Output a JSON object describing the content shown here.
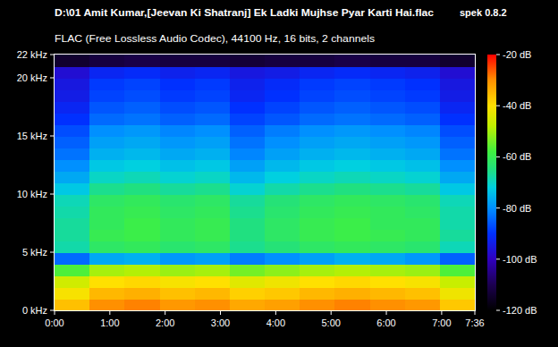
{
  "chart_data": {
    "type": "heatmap",
    "title": "D:\\01 Amit Kumar,[Jeevan Ki Shatranj] Ek Ladki Mujhse Pyar Karti Hai.flac",
    "subtitle": "FLAC (Free Lossless Audio Codec), 44100 Hz, 16 bits, 2 channels",
    "annotations": [
      "spek 0.8.2"
    ],
    "xlim": [
      0,
      456
    ],
    "ylim": [
      0,
      22
    ],
    "xticks": [
      {
        "value": 0,
        "label": "0:00"
      },
      {
        "value": 60,
        "label": "1:00"
      },
      {
        "value": 120,
        "label": "2:00"
      },
      {
        "value": 180,
        "label": "3:00"
      },
      {
        "value": 240,
        "label": "4:00"
      },
      {
        "value": 300,
        "label": "5:00"
      },
      {
        "value": 360,
        "label": "6:00"
      },
      {
        "value": 420,
        "label": "7:00"
      },
      {
        "value": 456,
        "label": "7:36"
      }
    ],
    "yticks": [
      {
        "value": 0,
        "label": "0 kHz"
      },
      {
        "value": 5,
        "label": "5 kHz"
      },
      {
        "value": 10,
        "label": "10 kHz"
      },
      {
        "value": 15,
        "label": "15 kHz"
      },
      {
        "value": 20,
        "label": "20 kHz"
      },
      {
        "value": 22,
        "label": "22 kHz"
      }
    ],
    "x_bins": [
      0,
      38,
      76,
      114,
      152,
      190,
      228,
      266,
      304,
      342,
      380,
      418,
      456
    ],
    "y_bins": [
      0,
      1,
      2,
      3,
      4,
      5,
      6,
      7,
      8,
      9,
      10,
      11,
      12,
      13,
      14,
      15,
      16,
      17,
      18,
      19,
      20,
      21,
      22
    ],
    "values": [
      [
        -36,
        -30,
        -29,
        -31,
        -30,
        -33,
        -32,
        -30,
        -29,
        -30,
        -31,
        -37
      ],
      [
        -41,
        -35,
        -34,
        -36,
        -35,
        -38,
        -37,
        -35,
        -34,
        -35,
        -36,
        -42
      ],
      [
        -46,
        -40,
        -39,
        -41,
        -40,
        -44,
        -42,
        -40,
        -39,
        -40,
        -41,
        -47
      ],
      [
        -57,
        -50,
        -49,
        -51,
        -50,
        -54,
        -52,
        -50,
        -49,
        -50,
        -51,
        -57
      ],
      [
        -84,
        -77,
        -76,
        -79,
        -78,
        -82,
        -80,
        -78,
        -76,
        -77,
        -79,
        -85
      ],
      [
        -68,
        -62,
        -61,
        -63,
        -62,
        -66,
        -64,
        -62,
        -61,
        -62,
        -63,
        -69
      ],
      [
        -67,
        -60,
        -59,
        -61,
        -60,
        -65,
        -62,
        -60,
        -59,
        -60,
        -61,
        -67
      ],
      [
        -67,
        -61,
        -59,
        -61,
        -60,
        -65,
        -62,
        -60,
        -59,
        -61,
        -61,
        -68
      ],
      [
        -68,
        -61,
        -60,
        -62,
        -61,
        -66,
        -63,
        -61,
        -60,
        -61,
        -62,
        -68
      ],
      [
        -69,
        -62,
        -61,
        -63,
        -62,
        -67,
        -64,
        -62,
        -61,
        -62,
        -63,
        -69
      ],
      [
        -73,
        -66,
        -65,
        -67,
        -66,
        -71,
        -68,
        -66,
        -65,
        -66,
        -67,
        -73
      ],
      [
        -77,
        -70,
        -69,
        -71,
        -70,
        -75,
        -72,
        -70,
        -69,
        -70,
        -71,
        -77
      ],
      [
        -80,
        -73,
        -72,
        -74,
        -73,
        -78,
        -75,
        -73,
        -72,
        -73,
        -74,
        -80
      ],
      [
        -83,
        -76,
        -75,
        -77,
        -76,
        -81,
        -78,
        -76,
        -75,
        -76,
        -77,
        -83
      ],
      [
        -85,
        -78,
        -77,
        -79,
        -78,
        -83,
        -80,
        -78,
        -77,
        -78,
        -79,
        -85
      ],
      [
        -87,
        -80,
        -79,
        -81,
        -80,
        -85,
        -82,
        -80,
        -79,
        -80,
        -81,
        -87
      ],
      [
        -90,
        -84,
        -83,
        -85,
        -84,
        -88,
        -86,
        -84,
        -83,
        -84,
        -85,
        -90
      ],
      [
        -92,
        -86,
        -85,
        -87,
        -86,
        -90,
        -88,
        -86,
        -85,
        -86,
        -87,
        -92
      ],
      [
        -94,
        -88,
        -87,
        -89,
        -88,
        -92,
        -90,
        -88,
        -87,
        -88,
        -89,
        -94
      ],
      [
        -95,
        -89,
        -88,
        -90,
        -89,
        -93,
        -91,
        -89,
        -88,
        -89,
        -90,
        -95
      ],
      [
        -97,
        -92,
        -91,
        -93,
        -92,
        -95,
        -94,
        -92,
        -91,
        -92,
        -93,
        -97
      ],
      [
        -114,
        -112,
        -111,
        -112,
        -112,
        -113,
        -112,
        -112,
        -111,
        -112,
        -112,
        -114
      ]
    ],
    "color_range": [
      -120,
      -20
    ],
    "color_ticks": [
      {
        "value": -20,
        "label": "-20 dB"
      },
      {
        "value": -40,
        "label": "-40 dB"
      },
      {
        "value": -60,
        "label": "-60 dB"
      },
      {
        "value": -80,
        "label": "-80 dB"
      },
      {
        "value": -100,
        "label": "-100 dB"
      },
      {
        "value": -120,
        "label": "-120 dB"
      }
    ]
  }
}
